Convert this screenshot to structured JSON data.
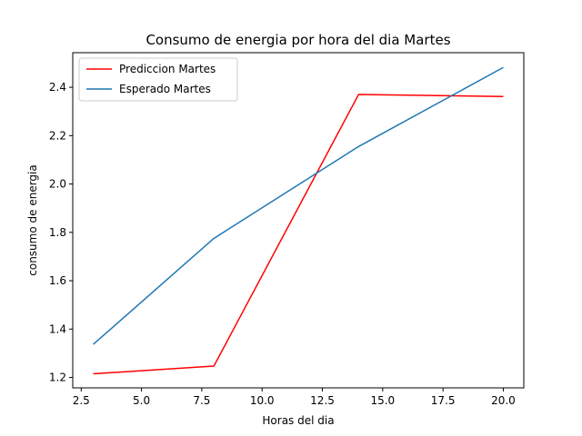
{
  "chart_data": {
    "type": "line",
    "title": "Consumo de energia por hora del dia Martes",
    "xlabel": "Horas del dia",
    "ylabel": "consumo de energia",
    "xlim": [
      2.15,
      20.85
    ],
    "ylim": [
      1.157,
      2.543
    ],
    "xticks": [
      2.5,
      5.0,
      7.5,
      10.0,
      12.5,
      15.0,
      17.5,
      20.0
    ],
    "xtick_labels": [
      "2.5",
      "5.0",
      "7.5",
      "10.0",
      "12.5",
      "15.0",
      "17.5",
      "20.0"
    ],
    "yticks": [
      1.2,
      1.4,
      1.6,
      1.8,
      2.0,
      2.2,
      2.4
    ],
    "ytick_labels": [
      "1.2",
      "1.4",
      "1.6",
      "1.8",
      "2.0",
      "2.2",
      "2.4"
    ],
    "grid": false,
    "legend_position": "top-left",
    "series": [
      {
        "name": "Prediccion Martes",
        "color": "#ff0000",
        "x": [
          3,
          8,
          14,
          20
        ],
        "y": [
          1.215,
          1.247,
          2.37,
          2.362
        ]
      },
      {
        "name": "Esperado Martes",
        "color": "#1f77b4",
        "x": [
          3,
          8,
          14,
          20
        ],
        "y": [
          1.337,
          1.775,
          2.155,
          2.482
        ]
      }
    ]
  }
}
